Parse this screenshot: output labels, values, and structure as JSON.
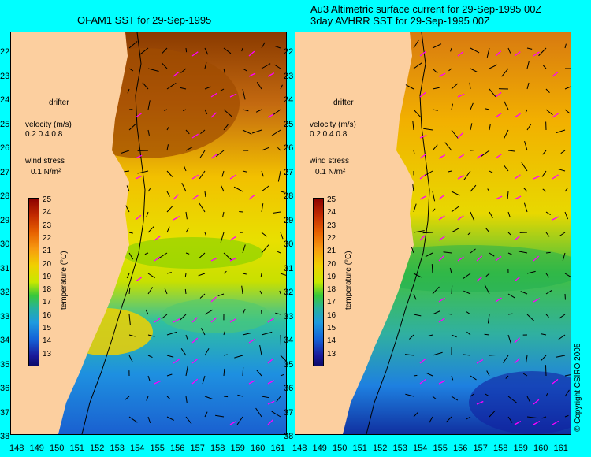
{
  "titles": {
    "left": "OFAM1 SST for 29-Sep-1995",
    "right_line1": "Au3 Altimetric surface current for 29-Sep-1995 00Z",
    "right_line2": "3day AVHRR SST for 29-Sep-1995 00Z"
  },
  "legend": {
    "drifter": "drifter",
    "velocity_label": "velocity (m/s)",
    "velocity_values": "0.2 0.4 0.8",
    "wind_label": "wind stress",
    "wind_value": "0.1 N/m²"
  },
  "colorbar": {
    "label": "temperature (°C)",
    "ticks": [
      "25",
      "24",
      "23",
      "22",
      "21",
      "20",
      "19",
      "18",
      "17",
      "16",
      "15",
      "14",
      "13"
    ]
  },
  "lat_labels": [
    "22",
    "23",
    "24",
    "25",
    "26",
    "27",
    "28",
    "29",
    "30",
    "31",
    "32",
    "33",
    "34",
    "35",
    "36",
    "37",
    "38"
  ],
  "lon_labels": [
    "148",
    "149",
    "150",
    "151",
    "152",
    "153",
    "154",
    "155",
    "156",
    "157",
    "158",
    "159",
    "160",
    "161"
  ],
  "copyright": "© Copyright CSIRO 2005",
  "colors": {
    "background": "#00ffff",
    "land": "#fccf9f",
    "warm": "#b55a00",
    "mid": "#f0c800",
    "cool": "#2aa8e0",
    "arrow_current": "#000000",
    "arrow_wind": "#ff00ff"
  }
}
